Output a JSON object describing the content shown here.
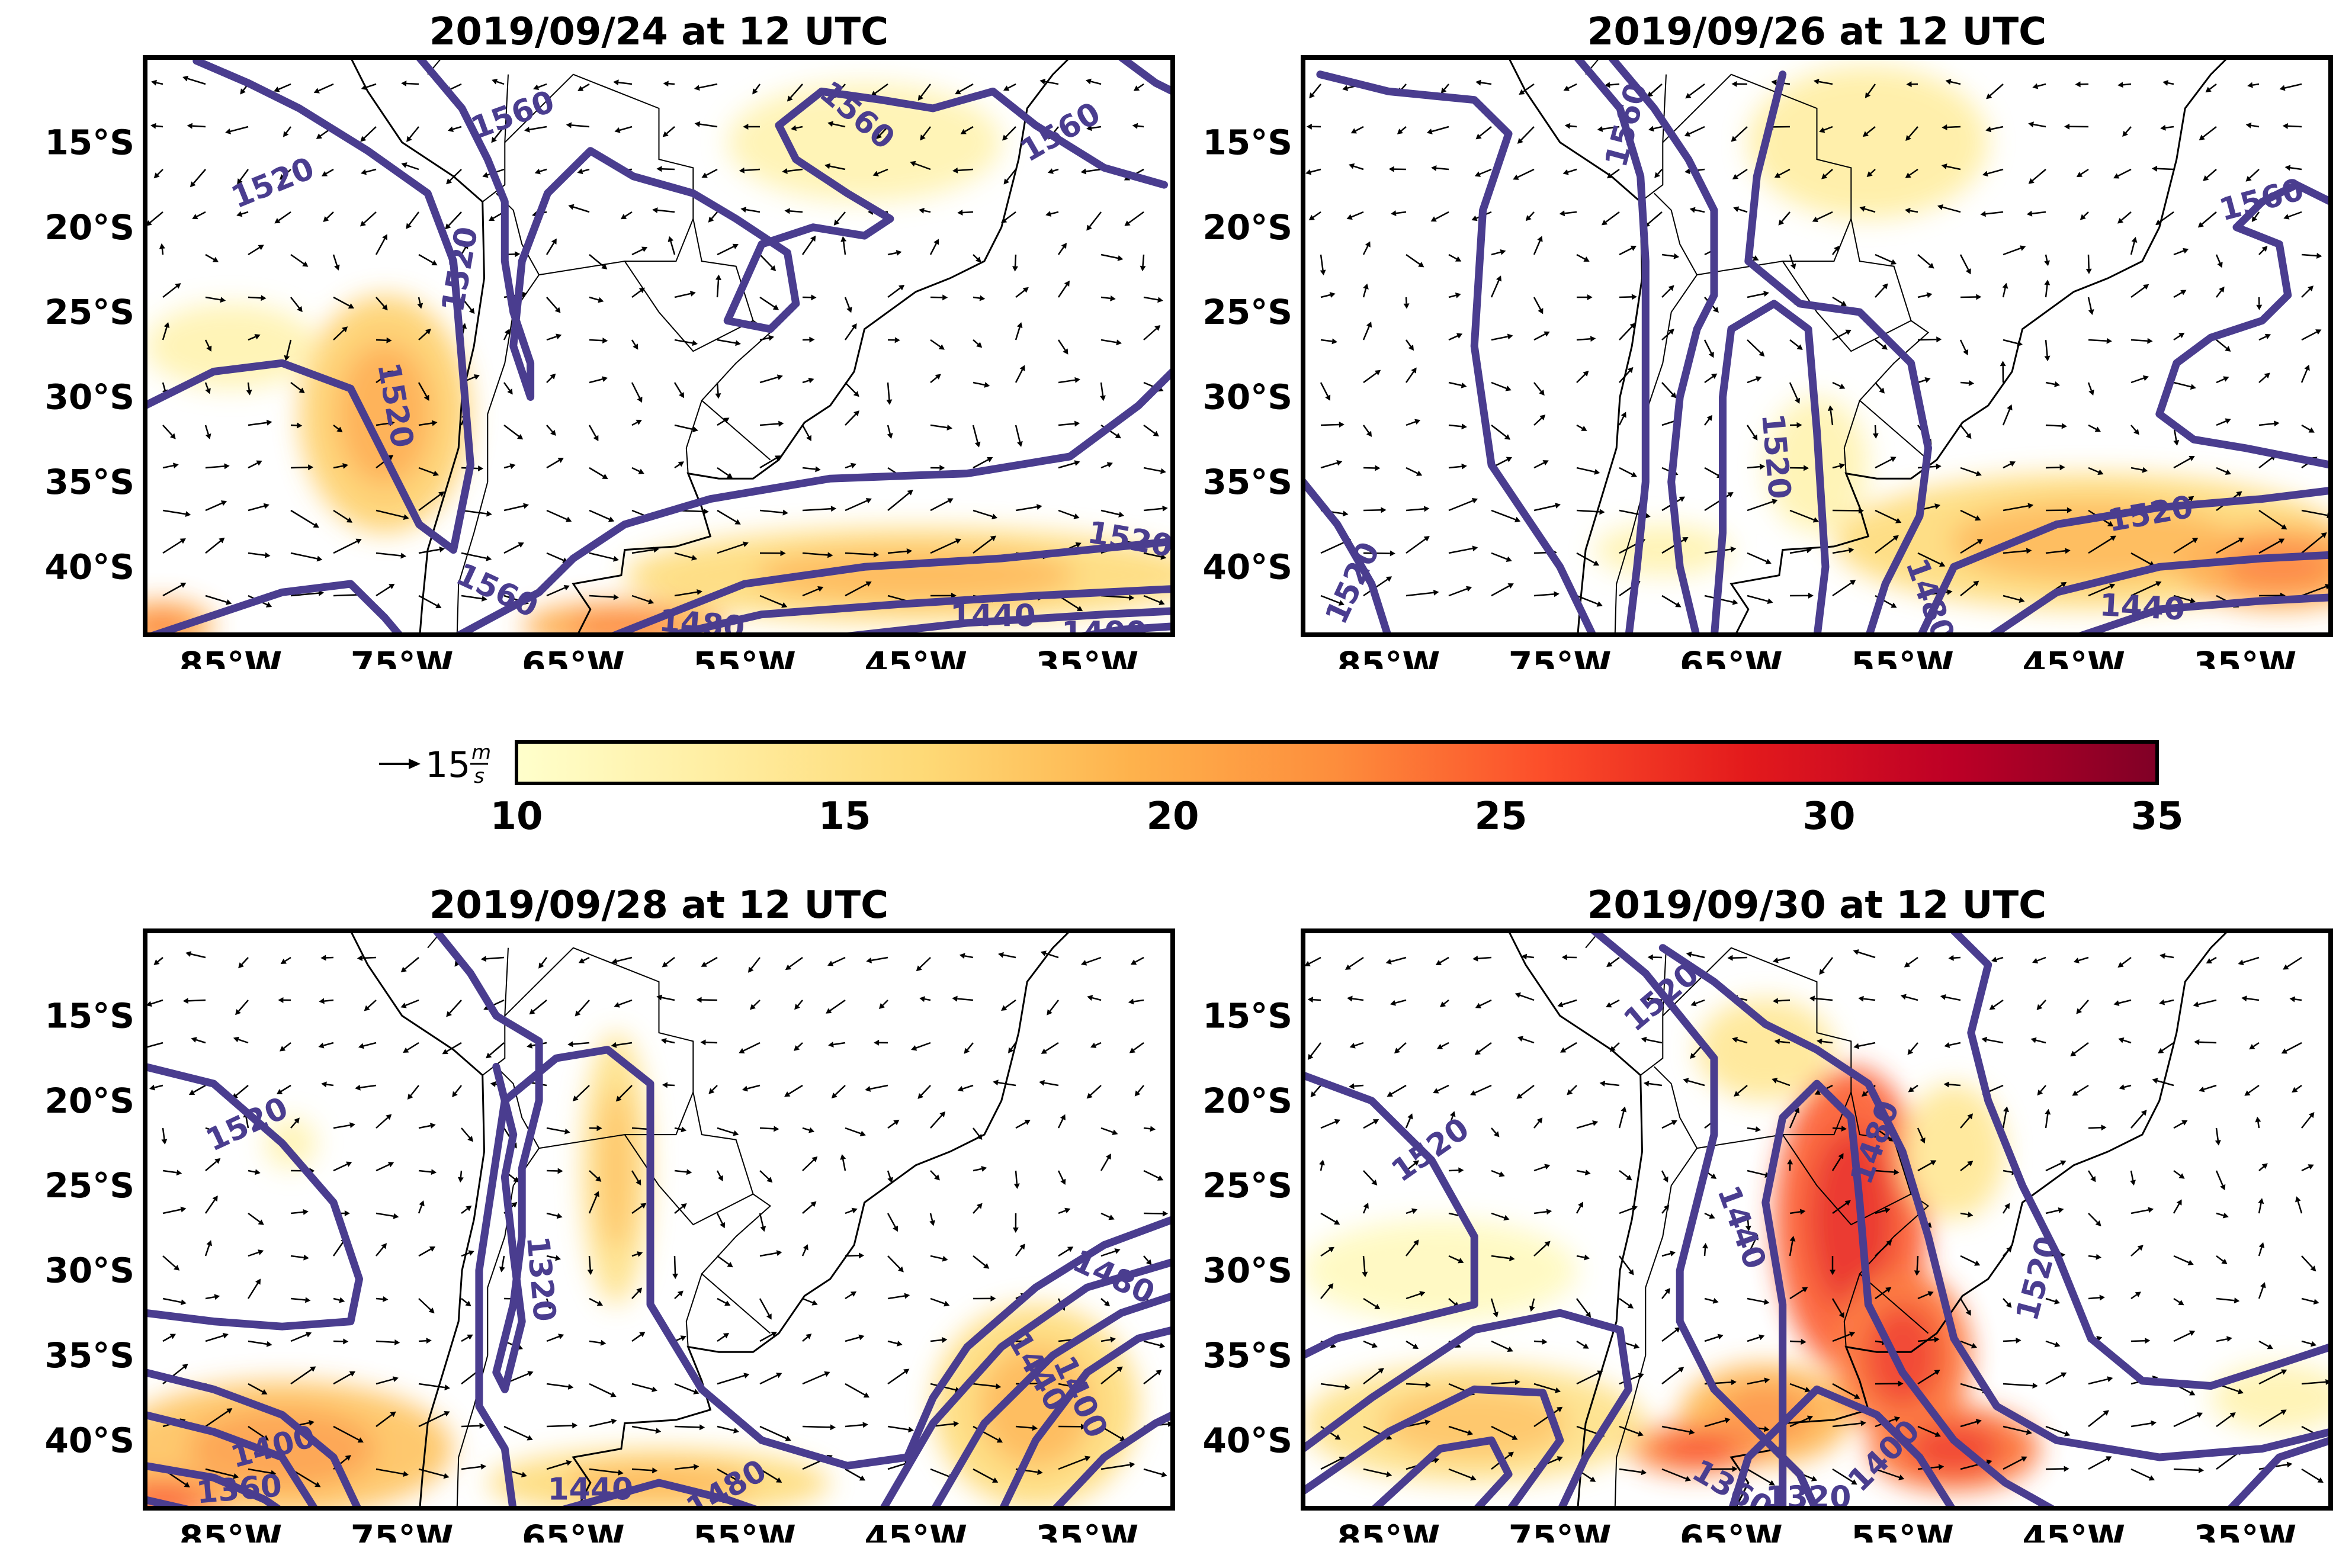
{
  "colors": {
    "contour": "#4a3d8f",
    "coast": "#000000",
    "arrow": "#000000",
    "frame": "#000000"
  },
  "axis": {
    "lon_ticks": [
      "85°W",
      "75°W",
      "65°W",
      "55°W",
      "45°W",
      "35°W"
    ],
    "lon_values": [
      -85,
      -75,
      -65,
      -55,
      -45,
      -35
    ],
    "lat_ticks": [
      "15°S",
      "20°S",
      "25°S",
      "30°S",
      "35°S",
      "40°S"
    ],
    "lat_values": [
      -15,
      -20,
      -25,
      -30,
      -35,
      -40
    ],
    "lon_range": [
      -90,
      -30
    ],
    "lat_range": [
      -44,
      -10
    ]
  },
  "panels": [
    {
      "id": "p1",
      "title": "2019/09/24 at 12 UTC",
      "contour_labels": [
        {
          "text": "1520",
          "lon": -82.5,
          "lat": -17.5,
          "rot": 22
        },
        {
          "text": "1560",
          "lon": -68.5,
          "lat": -13.5,
          "rot": 20
        },
        {
          "text": "1520",
          "lon": -71.5,
          "lat": -22.5,
          "rot": 80
        },
        {
          "text": "1520",
          "lon": -75.5,
          "lat": -30.5,
          "rot": -80
        },
        {
          "text": "1560",
          "lon": -48.5,
          "lat": -13.5,
          "rot": -40
        },
        {
          "text": "1560",
          "lon": -36.5,
          "lat": -14.5,
          "rot": 30
        },
        {
          "text": "1520",
          "lon": -32.5,
          "lat": -38.5,
          "rot": -10
        },
        {
          "text": "1560",
          "lon": -69.5,
          "lat": -41.5,
          "rot": -25
        },
        {
          "text": "1480",
          "lon": -57.5,
          "lat": -43.5,
          "rot": -5
        },
        {
          "text": "1440",
          "lon": -40.5,
          "lat": -43.0,
          "rot": 0
        },
        {
          "text": "1400",
          "lon": -34.0,
          "lat": -44.0,
          "rot": 0
        }
      ],
      "jets": [
        {
          "lon": -76,
          "lat": -31,
          "rx": 5,
          "ry": 7,
          "v": 17
        },
        {
          "lon": -85,
          "lat": -27,
          "rx": 5,
          "ry": 2.5,
          "v": 12
        },
        {
          "lon": -48,
          "lat": -15,
          "rx": 8,
          "ry": 3.5,
          "v": 12
        },
        {
          "lon": -45,
          "lat": -40.5,
          "rx": 17,
          "ry": 2.8,
          "v": 16
        },
        {
          "lon": -62,
          "lat": -43.5,
          "rx": 6,
          "ry": 1.5,
          "v": 20
        },
        {
          "lon": -89,
          "lat": -43.5,
          "rx": 3,
          "ry": 1.5,
          "v": 20
        }
      ]
    },
    {
      "id": "p2",
      "title": "2019/09/26 at 12 UTC",
      "contour_labels": [
        {
          "text": "1560",
          "lon": -71.0,
          "lat": -14.0,
          "rot": 75
        },
        {
          "text": "1560",
          "lon": -34.0,
          "lat": -18.5,
          "rot": 15
        },
        {
          "text": "1520",
          "lon": -87.0,
          "lat": -41.0,
          "rot": 65
        },
        {
          "text": "1520",
          "lon": -62.5,
          "lat": -33.5,
          "rot": -85
        },
        {
          "text": "1520",
          "lon": -40.5,
          "lat": -37.0,
          "rot": 10
        },
        {
          "text": "1480",
          "lon": -53.5,
          "lat": -42.0,
          "rot": -70
        },
        {
          "text": "1440",
          "lon": -41.0,
          "lat": -42.5,
          "rot": -3
        }
      ],
      "jets": [
        {
          "lon": -57,
          "lat": -15,
          "rx": 7,
          "ry": 4.5,
          "v": 13
        },
        {
          "lon": -44,
          "lat": -38.5,
          "rx": 15,
          "ry": 4,
          "v": 16
        },
        {
          "lon": -33,
          "lat": -40,
          "rx": 6,
          "ry": 2.5,
          "v": 20
        },
        {
          "lon": -60,
          "lat": -34,
          "rx": 3,
          "ry": 4,
          "v": 12
        },
        {
          "lon": -69,
          "lat": -39,
          "rx": 4,
          "ry": 1.5,
          "v": 12
        }
      ]
    },
    {
      "id": "p3",
      "title": "2019/09/28 at 12 UTC",
      "contour_labels": [
        {
          "text": "1520",
          "lon": -84.0,
          "lat": -21.5,
          "rot": 25
        },
        {
          "text": "1320",
          "lon": -67.0,
          "lat": -30.5,
          "rot": -85
        },
        {
          "text": "1480",
          "lon": -33.5,
          "lat": -30.5,
          "rot": -25
        },
        {
          "text": "1440",
          "lon": -38.0,
          "lat": -36.0,
          "rot": -60
        },
        {
          "text": "1400",
          "lon": -35.5,
          "lat": -37.5,
          "rot": -65
        },
        {
          "text": "1400",
          "lon": -82.5,
          "lat": -40.5,
          "rot": 15
        },
        {
          "text": "1360",
          "lon": -84.5,
          "lat": -43.0,
          "rot": 5
        },
        {
          "text": "1440",
          "lon": -64.0,
          "lat": -43.0,
          "rot": 0
        },
        {
          "text": "1480",
          "lon": -56.0,
          "lat": -43.0,
          "rot": 30
        }
      ],
      "jets": [
        {
          "lon": -62.5,
          "lat": -24,
          "rx": 2,
          "ry": 8,
          "v": 15
        },
        {
          "lon": -82,
          "lat": -40.5,
          "rx": 10,
          "ry": 4,
          "v": 18
        },
        {
          "lon": -89,
          "lat": -43.5,
          "rx": 4,
          "ry": 1.5,
          "v": 22
        },
        {
          "lon": -38,
          "lat": -38,
          "rx": 6,
          "ry": 6,
          "v": 16
        },
        {
          "lon": -60,
          "lat": -42.5,
          "rx": 10,
          "ry": 2,
          "v": 16
        },
        {
          "lon": -81.5,
          "lat": -22.5,
          "rx": 1.5,
          "ry": 1.5,
          "v": 12
        }
      ]
    },
    {
      "id": "p4",
      "title": "2019/09/30 at 12 UTC",
      "contour_labels": [
        {
          "text": "1520",
          "lon": -69.0,
          "lat": -14.0,
          "rot": 40
        },
        {
          "text": "1520",
          "lon": -82.5,
          "lat": -23.0,
          "rot": 35
        },
        {
          "text": "1480",
          "lon": -56.5,
          "lat": -22.5,
          "rot": 70
        },
        {
          "text": "1520",
          "lon": -47.0,
          "lat": -30.5,
          "rot": 75
        },
        {
          "text": "1440",
          "lon": -64.5,
          "lat": -27.5,
          "rot": -70
        },
        {
          "text": "1400",
          "lon": -56.0,
          "lat": -41.0,
          "rot": 45
        },
        {
          "text": "1360",
          "lon": -65.0,
          "lat": -43.0,
          "rot": -30
        },
        {
          "text": "1320",
          "lon": -60.5,
          "lat": -43.5,
          "rot": 0
        }
      ],
      "jets": [
        {
          "lon": -58,
          "lat": -27,
          "rx": 4.5,
          "ry": 9,
          "v": 25
        },
        {
          "lon": -55,
          "lat": -35,
          "rx": 4,
          "ry": 5,
          "v": 24
        },
        {
          "lon": -52,
          "lat": -40.5,
          "rx": 5,
          "ry": 2.5,
          "v": 24
        },
        {
          "lon": -63,
          "lat": -38.5,
          "rx": 5,
          "ry": 3,
          "v": 19
        },
        {
          "lon": -67,
          "lat": -40.5,
          "rx": 4,
          "ry": 1.5,
          "v": 23
        },
        {
          "lon": -80,
          "lat": -39,
          "rx": 10,
          "ry": 3.5,
          "v": 15
        },
        {
          "lon": -82,
          "lat": -30,
          "rx": 8,
          "ry": 3,
          "v": 11
        },
        {
          "lon": -63,
          "lat": -17,
          "rx": 4,
          "ry": 3,
          "v": 14
        },
        {
          "lon": -52,
          "lat": -23,
          "rx": 3,
          "ry": 4,
          "v": 14
        },
        {
          "lon": -33,
          "lat": -37.5,
          "rx": 4,
          "ry": 2,
          "v": 12
        }
      ]
    }
  ],
  "colorbar": {
    "ticks": [
      "10",
      "15",
      "20",
      "25",
      "30",
      "35"
    ],
    "tick_values": [
      10,
      15,
      20,
      25,
      30,
      35
    ],
    "range": [
      10,
      35
    ],
    "stops": [
      "#ffffcc",
      "#ffeda0",
      "#fed976",
      "#feb24c",
      "#fd8d3c",
      "#fc4e2a",
      "#e31a1c",
      "#bd0026",
      "#800026"
    ]
  },
  "reference_vector": {
    "value": "15",
    "unit_num": "m",
    "unit_den": "s"
  }
}
